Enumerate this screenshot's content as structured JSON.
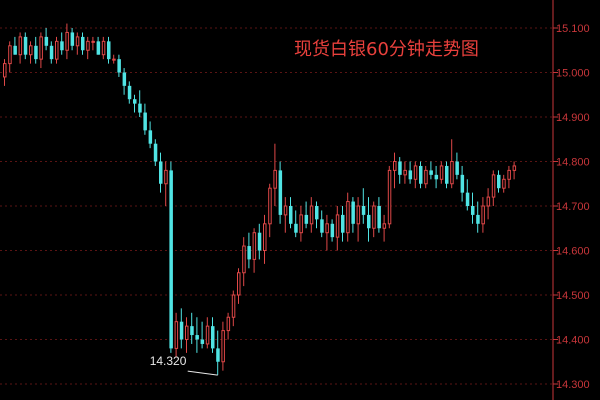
{
  "chart_data": {
    "type": "candlestick",
    "title": "现货白银60分钟走势图",
    "xlabel": "",
    "ylabel": "",
    "ylim": [
      14.3,
      15.1
    ],
    "yticks": [
      "15.100",
      "15.000",
      "14.900",
      "14.800",
      "14.700",
      "14.600",
      "14.500",
      "14.400",
      "14.300"
    ],
    "grid": true,
    "colors": {
      "up": "#e04848",
      "down": "#50e4e4",
      "axis": "#c8363a",
      "grid": "#5a1414",
      "title": "#e8403c"
    },
    "annotation": {
      "label": "14.320",
      "value": 14.32
    },
    "ohlc": [
      [
        14.99,
        15.03,
        14.97,
        15.02
      ],
      [
        15.02,
        15.07,
        15.0,
        15.06
      ],
      [
        15.06,
        15.08,
        15.04,
        15.04
      ],
      [
        15.04,
        15.09,
        15.02,
        15.08
      ],
      [
        15.08,
        15.09,
        15.03,
        15.04
      ],
      [
        15.04,
        15.07,
        15.02,
        15.06
      ],
      [
        15.06,
        15.08,
        15.02,
        15.03
      ],
      [
        15.03,
        15.09,
        15.01,
        15.08
      ],
      [
        15.08,
        15.1,
        15.05,
        15.06
      ],
      [
        15.06,
        15.07,
        15.02,
        15.03
      ],
      [
        15.03,
        15.08,
        15.02,
        15.07
      ],
      [
        15.07,
        15.09,
        15.04,
        15.05
      ],
      [
        15.05,
        15.11,
        15.03,
        15.09
      ],
      [
        15.09,
        15.1,
        15.05,
        15.06
      ],
      [
        15.06,
        15.09,
        15.04,
        15.08
      ],
      [
        15.08,
        15.09,
        15.04,
        15.05
      ],
      [
        15.05,
        15.08,
        15.03,
        15.07
      ],
      [
        15.07,
        15.08,
        15.05,
        15.07
      ],
      [
        15.07,
        15.08,
        15.04,
        15.04
      ],
      [
        15.04,
        15.08,
        15.03,
        15.07
      ],
      [
        15.07,
        15.08,
        15.02,
        15.03
      ],
      [
        15.03,
        15.04,
        15.02,
        15.03
      ],
      [
        15.03,
        15.04,
        14.99,
        15.0
      ],
      [
        15.0,
        15.01,
        14.95,
        14.97
      ],
      [
        14.97,
        14.98,
        14.93,
        14.94
      ],
      [
        14.94,
        14.95,
        14.91,
        14.93
      ],
      [
        14.93,
        14.96,
        14.9,
        14.91
      ],
      [
        14.91,
        14.93,
        14.86,
        14.87
      ],
      [
        14.87,
        14.89,
        14.83,
        14.84
      ],
      [
        14.84,
        14.85,
        14.79,
        14.8
      ],
      [
        14.8,
        14.82,
        14.73,
        14.75
      ],
      [
        14.75,
        14.8,
        14.7,
        14.78
      ],
      [
        14.78,
        14.8,
        14.37,
        14.38
      ],
      [
        14.38,
        14.46,
        14.36,
        14.44
      ],
      [
        14.44,
        14.47,
        14.38,
        14.4
      ],
      [
        14.4,
        14.45,
        14.37,
        14.43
      ],
      [
        14.43,
        14.46,
        14.39,
        14.41
      ],
      [
        14.41,
        14.45,
        14.37,
        14.4
      ],
      [
        14.4,
        14.44,
        14.38,
        14.39
      ],
      [
        14.39,
        14.45,
        14.38,
        14.43
      ],
      [
        14.43,
        14.45,
        14.37,
        14.38
      ],
      [
        14.38,
        14.42,
        14.32,
        14.35
      ],
      [
        14.35,
        14.44,
        14.33,
        14.42
      ],
      [
        14.42,
        14.46,
        14.4,
        14.45
      ],
      [
        14.45,
        14.51,
        14.43,
        14.5
      ],
      [
        14.5,
        14.56,
        14.48,
        14.55
      ],
      [
        14.55,
        14.63,
        14.52,
        14.61
      ],
      [
        14.61,
        14.64,
        14.56,
        14.58
      ],
      [
        14.58,
        14.65,
        14.55,
        14.64
      ],
      [
        14.64,
        14.66,
        14.58,
        14.6
      ],
      [
        14.6,
        14.68,
        14.57,
        14.66
      ],
      [
        14.66,
        14.75,
        14.63,
        14.74
      ],
      [
        14.74,
        14.84,
        14.7,
        14.78
      ],
      [
        14.78,
        14.8,
        14.66,
        14.68
      ],
      [
        14.68,
        14.72,
        14.64,
        14.7
      ],
      [
        14.7,
        14.72,
        14.65,
        14.66
      ],
      [
        14.66,
        14.69,
        14.63,
        14.64
      ],
      [
        14.64,
        14.7,
        14.62,
        14.68
      ],
      [
        14.68,
        14.71,
        14.65,
        14.66
      ],
      [
        14.66,
        14.72,
        14.64,
        14.7
      ],
      [
        14.7,
        14.71,
        14.65,
        14.67
      ],
      [
        14.67,
        14.69,
        14.63,
        14.64
      ],
      [
        14.64,
        14.68,
        14.6,
        14.66
      ],
      [
        14.66,
        14.67,
        14.62,
        14.63
      ],
      [
        14.63,
        14.7,
        14.6,
        14.68
      ],
      [
        14.68,
        14.7,
        14.62,
        14.64
      ],
      [
        14.64,
        14.73,
        14.62,
        14.71
      ],
      [
        14.71,
        14.72,
        14.64,
        14.66
      ],
      [
        14.66,
        14.72,
        14.62,
        14.7
      ],
      [
        14.7,
        14.74,
        14.66,
        14.68
      ],
      [
        14.68,
        14.72,
        14.62,
        14.65
      ],
      [
        14.65,
        14.71,
        14.63,
        14.7
      ],
      [
        14.7,
        14.72,
        14.64,
        14.65
      ],
      [
        14.65,
        14.68,
        14.62,
        14.66
      ],
      [
        14.66,
        14.79,
        14.65,
        14.78
      ],
      [
        14.78,
        14.82,
        14.74,
        14.8
      ],
      [
        14.8,
        14.81,
        14.75,
        14.77
      ],
      [
        14.77,
        14.8,
        14.75,
        14.78
      ],
      [
        14.78,
        14.8,
        14.75,
        14.76
      ],
      [
        14.76,
        14.8,
        14.74,
        14.79
      ],
      [
        14.79,
        14.8,
        14.74,
        14.75
      ],
      [
        14.75,
        14.79,
        14.74,
        14.78
      ],
      [
        14.78,
        14.8,
        14.76,
        14.77
      ],
      [
        14.77,
        14.79,
        14.74,
        14.76
      ],
      [
        14.76,
        14.8,
        14.75,
        14.79
      ],
      [
        14.79,
        14.8,
        14.74,
        14.75
      ],
      [
        14.75,
        14.85,
        14.74,
        14.8
      ],
      [
        14.8,
        14.82,
        14.76,
        14.77
      ],
      [
        14.77,
        14.79,
        14.71,
        14.73
      ],
      [
        14.73,
        14.76,
        14.69,
        14.7
      ],
      [
        14.7,
        14.73,
        14.66,
        14.68
      ],
      [
        14.68,
        14.71,
        14.64,
        14.66
      ],
      [
        14.66,
        14.72,
        14.64,
        14.7
      ],
      [
        14.7,
        14.74,
        14.67,
        14.72
      ],
      [
        14.72,
        14.78,
        14.7,
        14.77
      ],
      [
        14.77,
        14.78,
        14.73,
        14.74
      ],
      [
        14.74,
        14.77,
        14.73,
        14.76
      ],
      [
        14.76,
        14.79,
        14.74,
        14.78
      ],
      [
        14.78,
        14.8,
        14.76,
        14.79
      ]
    ]
  }
}
